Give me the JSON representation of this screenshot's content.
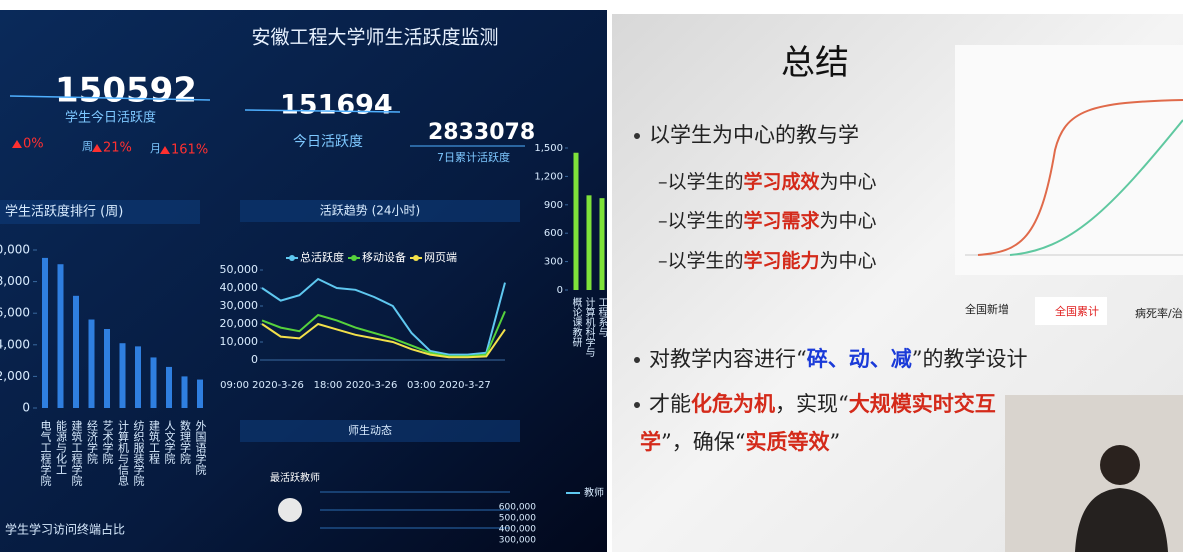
{
  "dashboard": {
    "title": "安徽工程大学师生活跃度监测",
    "student_stat": {
      "value": "150592",
      "label": "学生今日活跃度",
      "changes": [
        {
          "value": "0%"
        },
        {
          "period": "周",
          "value": "21%"
        },
        {
          "period": "月",
          "value": "161%"
        }
      ]
    },
    "today_stat": {
      "value": "151694",
      "label": "今日活跃度"
    },
    "week_stat": {
      "value": "2833078",
      "label": "7日累计活跃度"
    },
    "ranking": {
      "type": "bar",
      "title": "学生活跃度排行 (周)",
      "categories": [
        "电气工程学院",
        "能源与化工",
        "建筑工程学院",
        "经济学院",
        "艺术学院",
        "计算机与信息",
        "纺织服装学院",
        "建筑工程",
        "人文学院",
        "数理学院",
        "外国语学院"
      ],
      "values": [
        9500,
        9100,
        7100,
        5600,
        5000,
        4100,
        3900,
        3200,
        2600,
        2000,
        1800
      ],
      "color": "#2f7fe0",
      "ylim": [
        0,
        10000
      ],
      "yticks": [
        0,
        {
          "value": 2000,
          "label": "2,000"
        },
        {
          "value": 4000,
          "label": "4,000"
        },
        {
          "value": 6000,
          "label": "6,000"
        },
        {
          "value": 8000,
          "label": "8,000"
        },
        {
          "value": 10000,
          "label": "10,000"
        }
      ]
    },
    "trend": {
      "type": "line",
      "title": "活跃趋势 (24小时)",
      "categories": [
        "09:00 2020-3-26",
        null,
        null,
        null,
        null,
        "18:00 2020-3-26",
        null,
        null,
        null,
        null,
        "03:00 2020-3-27",
        null,
        null,
        null
      ],
      "ylim": [
        0,
        50000
      ],
      "yticks": [
        0,
        {
          "value": 10000,
          "label": "10,000"
        },
        {
          "value": 20000,
          "label": "20,000"
        },
        {
          "value": 30000,
          "label": "30,000"
        },
        {
          "value": 40000,
          "label": "40,000"
        },
        {
          "value": 50000,
          "label": "50,000"
        }
      ],
      "series": [
        {
          "name": "总活跃度",
          "color": "#5fc8f0",
          "values": [
            40000,
            33000,
            36000,
            45000,
            40000,
            39000,
            35000,
            30000,
            15000,
            5000,
            3000,
            3000,
            4000,
            43000
          ]
        },
        {
          "name": "移动设备",
          "color": "#56d23c",
          "values": [
            22000,
            18000,
            16000,
            25000,
            22000,
            18000,
            15000,
            12000,
            8000,
            4000,
            2000,
            2000,
            3000,
            27000
          ]
        },
        {
          "name": "网页端",
          "color": "#f2e04a",
          "values": [
            20000,
            13000,
            12000,
            20000,
            17000,
            14000,
            12000,
            10000,
            6000,
            3000,
            1500,
            1500,
            2000,
            17000
          ]
        }
      ]
    },
    "side": {
      "type": "bar",
      "categories": [
        "概论课教研",
        "计算机科学与",
        "工程系与"
      ],
      "values": [
        1450,
        1000,
        970
      ],
      "color": "#7ee23a",
      "ylim": [
        0,
        1500
      ],
      "yticks": [
        0,
        300,
        600,
        900,
        {
          "value": 1200,
          "label": "1,200"
        },
        {
          "value": 1500,
          "label": "1,500"
        }
      ]
    },
    "feed": {
      "title": "师生动态",
      "top_teacher": "最活跃教师",
      "legend": "教师",
      "ticks": [
        "600,000",
        "500,000",
        "400,000",
        "300,000"
      ]
    },
    "terminal_title": "学生学习访问终端占比"
  },
  "slide": {
    "title": "总结",
    "lines": [
      {
        "parts": [
          "以学生为中心的教与学"
        ]
      },
      {
        "parts": [
          "–以学生的",
          "学习成效",
          "为中心"
        ]
      },
      {
        "parts": [
          "–以学生的",
          "学习需求",
          "为中心"
        ]
      },
      {
        "parts": [
          "–以学生的",
          "学习能力",
          "为中心"
        ]
      },
      {
        "parts": [
          "对教学内容进行“",
          "碎、动、减",
          "”的教学设计"
        ]
      },
      {
        "parts": [
          "才能",
          "化危为机",
          "，实现“",
          "大规模实时交互"
        ]
      },
      {
        "parts": [
          "学",
          "”，确保“",
          "实质等效",
          "”"
        ]
      }
    ],
    "tabs": [
      "全国新增",
      "全国累计",
      "病死率/治"
    ]
  }
}
